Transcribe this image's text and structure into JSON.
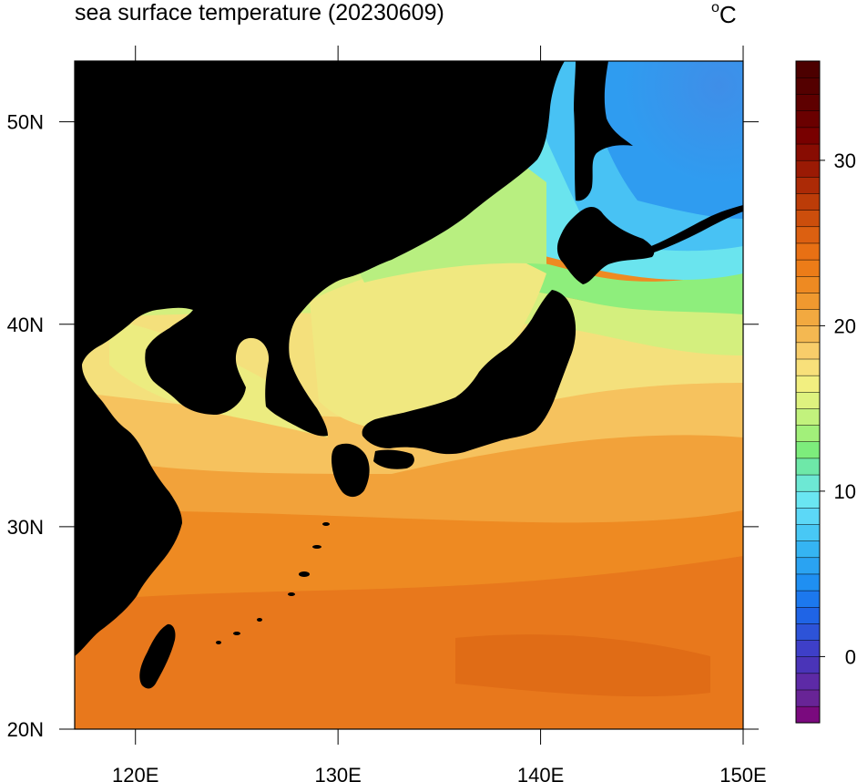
{
  "header": {
    "title": "sea surface temperature (20230609)",
    "unit_degree": "o",
    "unit_letter": "C"
  },
  "map": {
    "variable": "sea surface temperature",
    "lon_range": [
      117,
      150
    ],
    "lat_range": [
      20,
      53
    ],
    "x_ticks": [
      {
        "value": 120,
        "label": "120E"
      },
      {
        "value": 130,
        "label": "130E"
      },
      {
        "value": 140,
        "label": "140E"
      },
      {
        "value": 150,
        "label": "150E"
      }
    ],
    "y_ticks": [
      {
        "value": 20,
        "label": "20N"
      },
      {
        "value": 30,
        "label": "30N"
      },
      {
        "value": 40,
        "label": "40N"
      },
      {
        "value": 50,
        "label": "50N"
      }
    ],
    "land_color": "#000000"
  },
  "colorbar": {
    "min": -4,
    "max": 36,
    "interval": 1,
    "labels": [
      {
        "value": 0,
        "label": "0"
      },
      {
        "value": 10,
        "label": "10"
      },
      {
        "value": 20,
        "label": "20"
      },
      {
        "value": 30,
        "label": "30"
      }
    ],
    "colors": [
      "#7a0a7e",
      "#682496",
      "#5d2aa6",
      "#4a34b8",
      "#3e3fc8",
      "#2d53d8",
      "#1f64e6",
      "#1c78ee",
      "#1f8ff2",
      "#2aa3f2",
      "#35b4f2",
      "#48c8f5",
      "#5cd8f7",
      "#6ae6f2",
      "#6de8d4",
      "#6ee8a8",
      "#7ded7c",
      "#a2f07a",
      "#c2f27d",
      "#def27f",
      "#f2ef80",
      "#f8e07a",
      "#f8cd6a",
      "#f4b851",
      "#f2a940",
      "#f0992f",
      "#ee8a22",
      "#ec7c18",
      "#e87014",
      "#dc6011",
      "#cc4e0c",
      "#bc3c08",
      "#ac2a06",
      "#9a1a04",
      "#880c02",
      "#780000",
      "#6a0000",
      "#5e0000",
      "#540000",
      "#4c0000"
    ]
  }
}
